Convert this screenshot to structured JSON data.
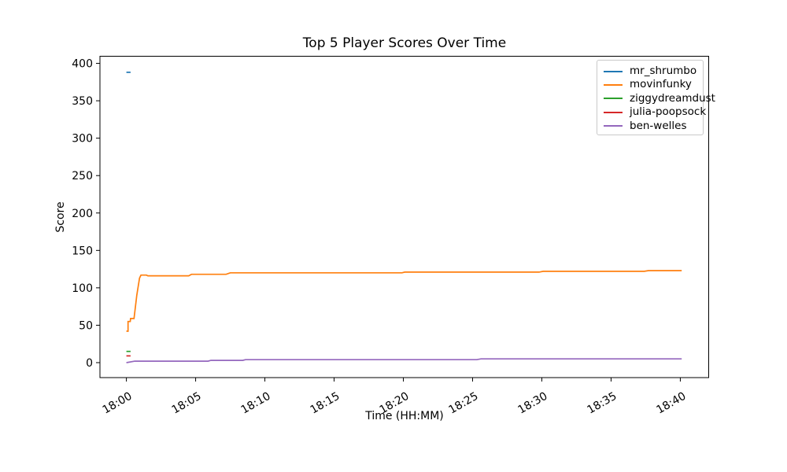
{
  "chart_data": {
    "type": "line",
    "title": "Top 5 Player Scores Over Time",
    "xlabel": "Time (HH:MM)",
    "ylabel": "Score",
    "grid": false,
    "legend_position": "upper right",
    "x_axis_unit": "minutes after 18:00",
    "xlim": [
      -1.91,
      42.05
    ],
    "ylim": [
      -20,
      409.5
    ],
    "xticks": [
      {
        "t": 0,
        "label": "18:00"
      },
      {
        "t": 5,
        "label": "18:05"
      },
      {
        "t": 10,
        "label": "18:10"
      },
      {
        "t": 15,
        "label": "18:15"
      },
      {
        "t": 20,
        "label": "18:20"
      },
      {
        "t": 25,
        "label": "18:25"
      },
      {
        "t": 30,
        "label": "18:30"
      },
      {
        "t": 35,
        "label": "18:35"
      },
      {
        "t": 40,
        "label": "18:40"
      }
    ],
    "yticks": [
      {
        "v": 0,
        "label": "0"
      },
      {
        "v": 50,
        "label": "50"
      },
      {
        "v": 100,
        "label": "100"
      },
      {
        "v": 150,
        "label": "150"
      },
      {
        "v": 200,
        "label": "200"
      },
      {
        "v": 250,
        "label": "250"
      },
      {
        "v": 300,
        "label": "300"
      },
      {
        "v": 350,
        "label": "350"
      },
      {
        "v": 400,
        "label": "400"
      }
    ],
    "series": [
      {
        "name": "mr_shrumbo",
        "color": "#1f77b4",
        "points": [
          [
            0,
            388
          ],
          [
            0.3,
            388
          ]
        ]
      },
      {
        "name": "movinfunky",
        "color": "#ff7f0e",
        "points": [
          [
            0,
            42
          ],
          [
            0.12,
            42
          ],
          [
            0.12,
            55
          ],
          [
            0.28,
            55
          ],
          [
            0.3,
            59
          ],
          [
            0.55,
            59
          ],
          [
            0.75,
            90
          ],
          [
            0.95,
            113
          ],
          [
            1.05,
            117
          ],
          [
            1.45,
            117
          ],
          [
            1.55,
            116
          ],
          [
            4.5,
            116
          ],
          [
            4.7,
            118
          ],
          [
            7.2,
            118
          ],
          [
            7.5,
            120
          ],
          [
            19.9,
            120
          ],
          [
            20.1,
            121
          ],
          [
            29.8,
            121
          ],
          [
            30.1,
            122
          ],
          [
            37.4,
            122
          ],
          [
            37.7,
            123
          ],
          [
            40.1,
            123
          ]
        ]
      },
      {
        "name": "ziggydreamdust",
        "color": "#2ca02c",
        "points": [
          [
            0,
            15
          ],
          [
            0.3,
            15
          ]
        ]
      },
      {
        "name": "julia-poopsock",
        "color": "#d62728",
        "points": [
          [
            0,
            9
          ],
          [
            0.3,
            9
          ]
        ]
      },
      {
        "name": "ben-welles",
        "color": "#9467bd",
        "points": [
          [
            0,
            0
          ],
          [
            0.6,
            2
          ],
          [
            5.9,
            2
          ],
          [
            6.1,
            3
          ],
          [
            8.4,
            3
          ],
          [
            8.6,
            4
          ],
          [
            25.3,
            4
          ],
          [
            25.6,
            5
          ],
          [
            40.1,
            5
          ]
        ]
      }
    ]
  }
}
